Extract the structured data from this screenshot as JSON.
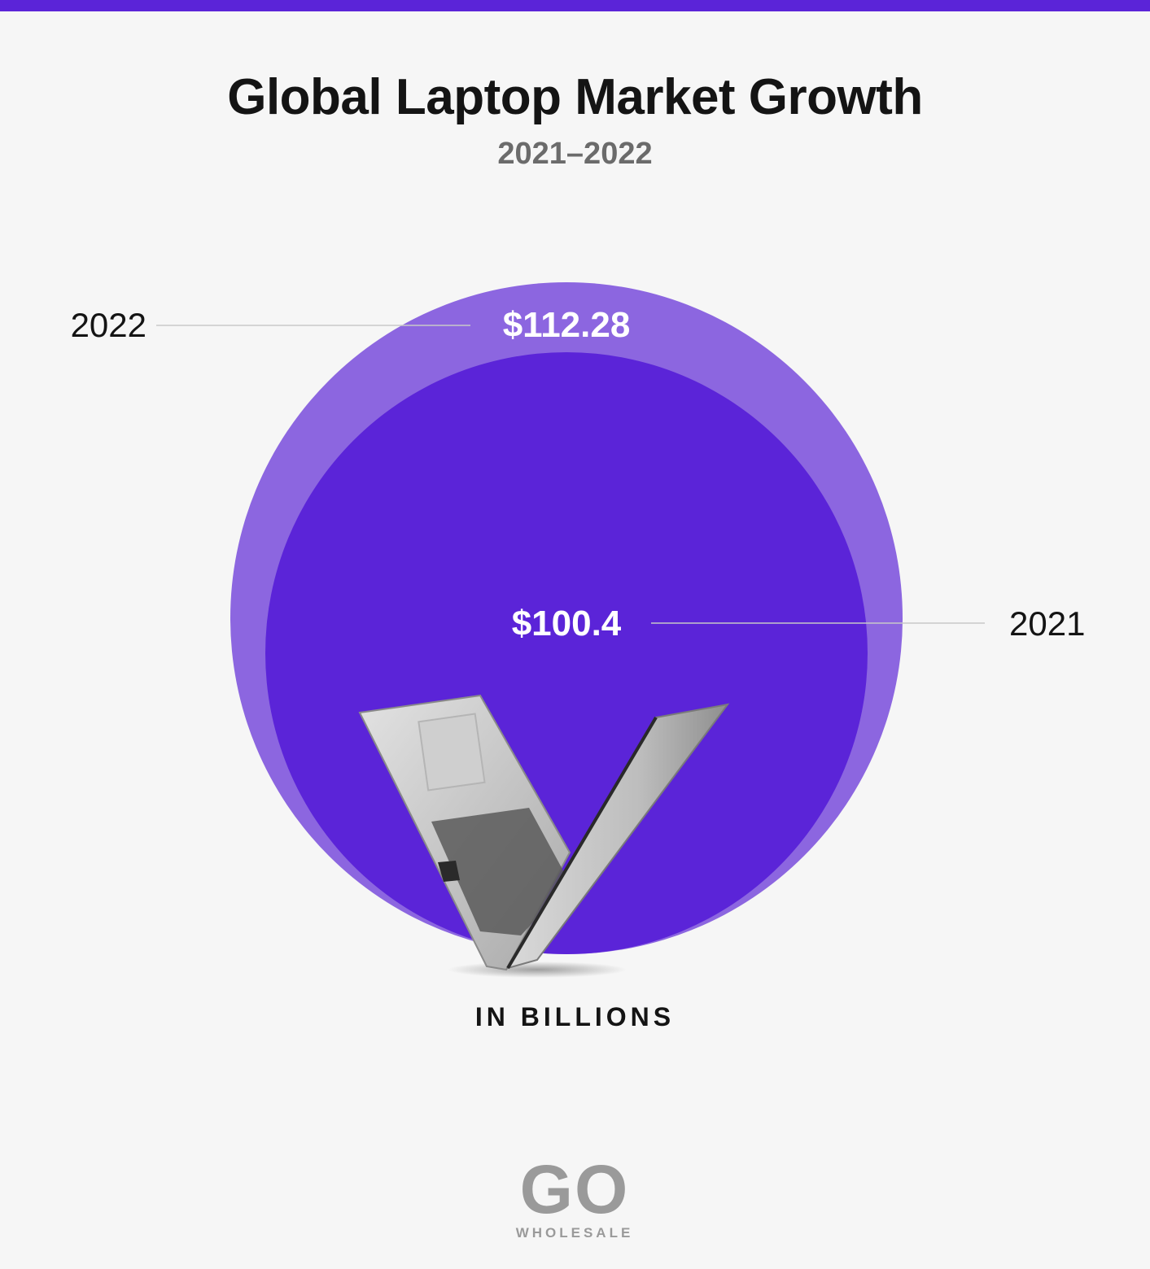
{
  "colors": {
    "accent": "#5b24d8",
    "outer_circle": "#8c66e0",
    "inner_circle": "#5b24d8",
    "leader_line": "#c8c8c8",
    "background": "#f6f6f6"
  },
  "chart_data": {
    "type": "bubble",
    "title": "Global Laptop Market Growth",
    "subtitle": "2021–2022",
    "units_label": "IN BILLIONS",
    "series": [
      {
        "name": "2022",
        "value": 112.28,
        "label": "$112.28"
      },
      {
        "name": "2021",
        "value": 100.4,
        "label": "$100.4"
      }
    ]
  },
  "logo": {
    "main": "GO",
    "sub": "WHOLESALE"
  }
}
